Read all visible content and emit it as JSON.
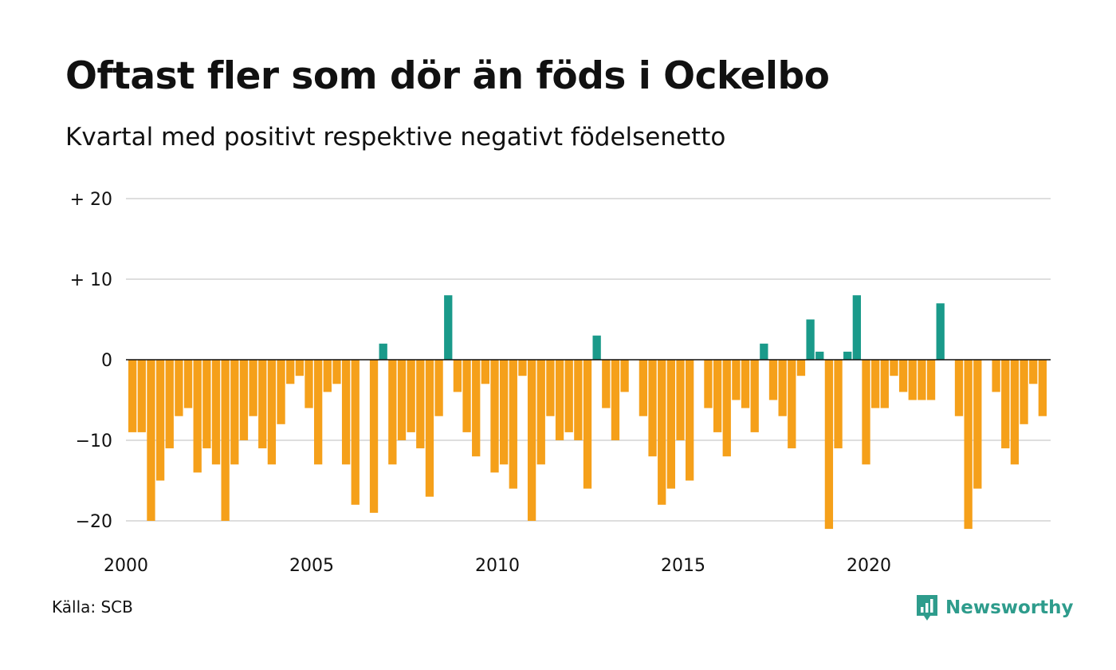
{
  "title": "Oftast fler som dör än föds i Ockelbo",
  "subtitle": "Kvartal med positivt respektive negativt födelsenetto",
  "source": "Källa: SCB",
  "brand": {
    "name": "Newsworthy",
    "icon": "newsworthy-logo-icon",
    "color": "#2e9c8c"
  },
  "chart_data": {
    "type": "bar",
    "xlabel": "",
    "ylabel": "",
    "ylim": [
      -23,
      20
    ],
    "x_start_year": 2000,
    "periods_per_year": 4,
    "yticks": [
      {
        "value": 20,
        "label": "+ 20"
      },
      {
        "value": 10,
        "label": "+ 10"
      },
      {
        "value": 0,
        "label": "0"
      },
      {
        "value": -10,
        "label": "−10"
      },
      {
        "value": -20,
        "label": "−20"
      }
    ],
    "xticks": [
      "2000",
      "2005",
      "2010",
      "2015",
      "2020"
    ],
    "colors": {
      "positive": "#1a9a8a",
      "negative": "#f5a01a",
      "grid": "#dedede",
      "zero_line": "#111111"
    },
    "grid": true,
    "values": [
      -9,
      -9,
      -20,
      -15,
      -11,
      -7,
      -6,
      -14,
      -11,
      -13,
      -20,
      -13,
      -10,
      -7,
      -11,
      -13,
      -8,
      -3,
      -2,
      -6,
      -13,
      -4,
      -3,
      -13,
      -18,
      0,
      -19,
      2,
      -13,
      -10,
      -9,
      -11,
      -17,
      -7,
      8,
      -4,
      -9,
      -12,
      -3,
      -14,
      -13,
      -16,
      -2,
      -20,
      -13,
      -7,
      -10,
      -9,
      -10,
      -16,
      3,
      -6,
      -10,
      -4,
      0,
      -7,
      -12,
      -18,
      -16,
      -10,
      -15,
      0,
      -6,
      -9,
      -12,
      -5,
      -6,
      -9,
      2,
      -5,
      -7,
      -11,
      -2,
      5,
      1,
      -21,
      -11,
      1,
      8,
      -13,
      -6,
      -6,
      -2,
      -4,
      -5,
      -5,
      -5,
      7,
      0,
      -7,
      -21,
      -16,
      0,
      -4,
      -11,
      -13,
      -8,
      -3,
      -7
    ]
  }
}
